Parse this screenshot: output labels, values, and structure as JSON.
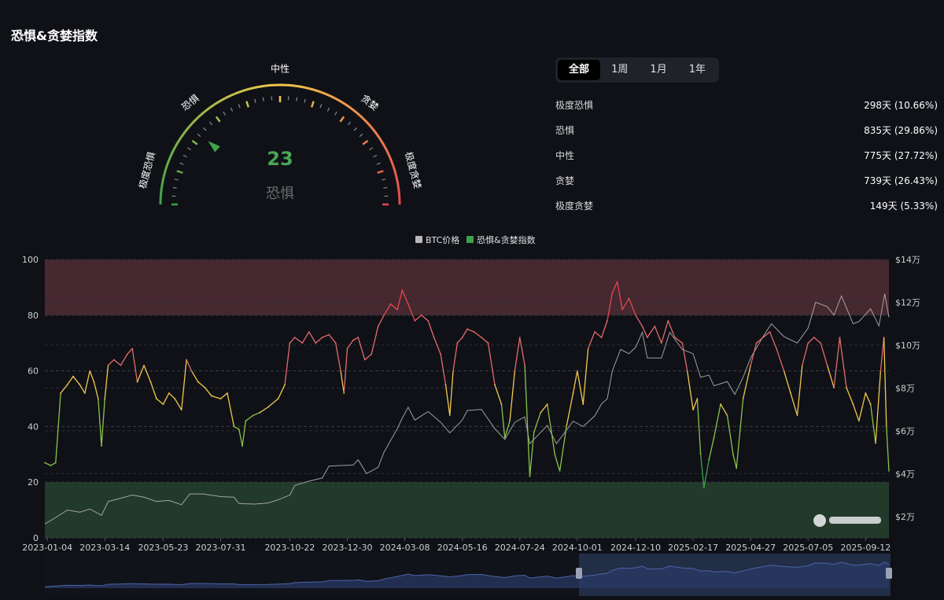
{
  "page": {
    "title": "恐惧&贪婪指数"
  },
  "gauge": {
    "value": 23,
    "status": "恐惧",
    "labels": {
      "extreme_fear": "极度恐惧",
      "fear": "恐惧",
      "neutral": "中性",
      "greed": "贪婪",
      "extreme_greed": "极度贪婪"
    }
  },
  "tabs": [
    "全部",
    "1周",
    "1月",
    "1年"
  ],
  "active_tab": "全部",
  "distribution": [
    {
      "label": "极度恐惧",
      "value": "298天 (10.66%)"
    },
    {
      "label": "恐惧",
      "value": "835天 (29.86%)"
    },
    {
      "label": "中性",
      "value": "775天 (27.72%)"
    },
    {
      "label": "贪婪",
      "value": "739天 (26.43%)"
    },
    {
      "label": "极度贪婪",
      "value": "149天 (5.33%)"
    }
  ],
  "colors": {
    "background": "#0f1117",
    "extreme_fear": "#3ea34a",
    "fear": "#8bc34a",
    "neutral": "#f2c84b",
    "greed": "#e36b6b",
    "extreme_greed": "#e5484d",
    "btc_line": "#b9b9b9",
    "greed_zone": "#4a2a31",
    "fear_zone": "#243d2b",
    "navigator": "#2a3a66"
  },
  "chart_data": {
    "type": "line",
    "legend": [
      "BTC价格",
      "恐惧&贪婪指数"
    ],
    "legend_placement": "top-center",
    "x_ticks": [
      "2023-01-04",
      "2023-03-14",
      "2023-05-23",
      "2023-07-31",
      "2023-10-22",
      "2023-12-30",
      "2024-03-08",
      "2024-05-16",
      "2024-07-24",
      "2024-10-01",
      "2024-12-10",
      "2025-02-17",
      "2025-04-27",
      "2025-07-05",
      "2025-09-12"
    ],
    "y_left": {
      "ticks": [
        "0",
        "20",
        "40",
        "60",
        "80",
        "100"
      ],
      "range": [
        0,
        100
      ]
    },
    "y_right": {
      "ticks": [
        "$2万",
        "$4万",
        "$6万",
        "$8万",
        "$10万",
        "$12万",
        "$14万"
      ],
      "range": [
        10000,
        140000
      ]
    },
    "zones": [
      {
        "name": "greed",
        "from": 80,
        "to": 100
      },
      {
        "name": "fear",
        "from": 0,
        "to": 20
      }
    ],
    "x_range": [
      "2023-01-01",
      "2025-10-10"
    ],
    "series": [
      {
        "name": "恐惧&贪婪指数",
        "axis": "left",
        "points": [
          [
            "2023-01-01",
            27
          ],
          [
            "2023-01-08",
            26
          ],
          [
            "2023-01-14",
            27
          ],
          [
            "2023-01-20",
            52
          ],
          [
            "2023-01-28",
            55
          ],
          [
            "2023-02-04",
            58
          ],
          [
            "2023-02-12",
            55
          ],
          [
            "2023-02-18",
            52
          ],
          [
            "2023-02-24",
            60
          ],
          [
            "2023-03-01",
            56
          ],
          [
            "2023-03-06",
            50
          ],
          [
            "2023-03-10",
            33
          ],
          [
            "2023-03-14",
            50
          ],
          [
            "2023-03-18",
            62
          ],
          [
            "2023-03-25",
            64
          ],
          [
            "2023-04-02",
            62
          ],
          [
            "2023-04-10",
            66
          ],
          [
            "2023-04-16",
            68
          ],
          [
            "2023-04-22",
            56
          ],
          [
            "2023-04-30",
            62
          ],
          [
            "2023-05-08",
            56
          ],
          [
            "2023-05-15",
            50
          ],
          [
            "2023-05-23",
            48
          ],
          [
            "2023-05-30",
            52
          ],
          [
            "2023-06-06",
            50
          ],
          [
            "2023-06-14",
            46
          ],
          [
            "2023-06-20",
            64
          ],
          [
            "2023-06-26",
            60
          ],
          [
            "2023-07-04",
            56
          ],
          [
            "2023-07-12",
            54
          ],
          [
            "2023-07-20",
            51
          ],
          [
            "2023-07-31",
            50
          ],
          [
            "2023-08-08",
            52
          ],
          [
            "2023-08-16",
            40
          ],
          [
            "2023-08-22",
            39
          ],
          [
            "2023-08-26",
            33
          ],
          [
            "2023-08-30",
            42
          ],
          [
            "2023-09-08",
            44
          ],
          [
            "2023-09-16",
            45
          ],
          [
            "2023-09-26",
            47
          ],
          [
            "2023-10-08",
            50
          ],
          [
            "2023-10-16",
            55
          ],
          [
            "2023-10-22",
            70
          ],
          [
            "2023-10-28",
            72
          ],
          [
            "2023-11-06",
            70
          ],
          [
            "2023-11-14",
            74
          ],
          [
            "2023-11-22",
            70
          ],
          [
            "2023-11-30",
            72
          ],
          [
            "2023-12-08",
            73
          ],
          [
            "2023-12-16",
            70
          ],
          [
            "2023-12-22",
            60
          ],
          [
            "2023-12-26",
            52
          ],
          [
            "2023-12-30",
            68
          ],
          [
            "2024-01-06",
            71
          ],
          [
            "2024-01-12",
            72
          ],
          [
            "2024-01-20",
            64
          ],
          [
            "2024-01-28",
            66
          ],
          [
            "2024-02-05",
            76
          ],
          [
            "2024-02-12",
            80
          ],
          [
            "2024-02-20",
            84
          ],
          [
            "2024-02-28",
            82
          ],
          [
            "2024-03-05",
            89
          ],
          [
            "2024-03-12",
            84
          ],
          [
            "2024-03-20",
            78
          ],
          [
            "2024-03-28",
            80
          ],
          [
            "2024-04-05",
            78
          ],
          [
            "2024-04-12",
            72
          ],
          [
            "2024-04-20",
            66
          ],
          [
            "2024-04-26",
            55
          ],
          [
            "2024-05-01",
            44
          ],
          [
            "2024-05-05",
            60
          ],
          [
            "2024-05-10",
            70
          ],
          [
            "2024-05-16",
            72
          ],
          [
            "2024-05-22",
            75
          ],
          [
            "2024-05-30",
            74
          ],
          [
            "2024-06-08",
            72
          ],
          [
            "2024-06-16",
            70
          ],
          [
            "2024-06-24",
            55
          ],
          [
            "2024-07-02",
            48
          ],
          [
            "2024-07-06",
            36
          ],
          [
            "2024-07-12",
            42
          ],
          [
            "2024-07-18",
            60
          ],
          [
            "2024-07-24",
            72
          ],
          [
            "2024-07-30",
            62
          ],
          [
            "2024-08-05",
            22
          ],
          [
            "2024-08-10",
            38
          ],
          [
            "2024-08-18",
            45
          ],
          [
            "2024-08-26",
            48
          ],
          [
            "2024-09-04",
            30
          ],
          [
            "2024-09-10",
            24
          ],
          [
            "2024-09-18",
            40
          ],
          [
            "2024-09-26",
            52
          ],
          [
            "2024-10-01",
            60
          ],
          [
            "2024-10-08",
            48
          ],
          [
            "2024-10-14",
            68
          ],
          [
            "2024-10-22",
            74
          ],
          [
            "2024-10-30",
            72
          ],
          [
            "2024-11-06",
            78
          ],
          [
            "2024-11-12",
            88
          ],
          [
            "2024-11-18",
            92
          ],
          [
            "2024-11-24",
            82
          ],
          [
            "2024-12-02",
            86
          ],
          [
            "2024-12-10",
            80
          ],
          [
            "2024-12-18",
            76
          ],
          [
            "2024-12-24",
            72
          ],
          [
            "2025-01-02",
            76
          ],
          [
            "2025-01-10",
            70
          ],
          [
            "2025-01-18",
            78
          ],
          [
            "2025-01-26",
            72
          ],
          [
            "2025-02-04",
            70
          ],
          [
            "2025-02-10",
            60
          ],
          [
            "2025-02-17",
            46
          ],
          [
            "2025-02-22",
            50
          ],
          [
            "2025-02-26",
            30
          ],
          [
            "2025-03-02",
            18
          ],
          [
            "2025-03-08",
            28
          ],
          [
            "2025-03-14",
            36
          ],
          [
            "2025-03-22",
            48
          ],
          [
            "2025-03-30",
            44
          ],
          [
            "2025-04-06",
            30
          ],
          [
            "2025-04-10",
            25
          ],
          [
            "2025-04-18",
            50
          ],
          [
            "2025-04-27",
            62
          ],
          [
            "2025-05-04",
            70
          ],
          [
            "2025-05-12",
            72
          ],
          [
            "2025-05-20",
            74
          ],
          [
            "2025-05-28",
            68
          ],
          [
            "2025-06-06",
            60
          ],
          [
            "2025-06-14",
            52
          ],
          [
            "2025-06-22",
            44
          ],
          [
            "2025-06-28",
            62
          ],
          [
            "2025-07-05",
            70
          ],
          [
            "2025-07-12",
            72
          ],
          [
            "2025-07-20",
            70
          ],
          [
            "2025-07-28",
            62
          ],
          [
            "2025-08-05",
            54
          ],
          [
            "2025-08-12",
            72
          ],
          [
            "2025-08-20",
            54
          ],
          [
            "2025-08-28",
            48
          ],
          [
            "2025-09-04",
            42
          ],
          [
            "2025-09-12",
            52
          ],
          [
            "2025-09-18",
            48
          ],
          [
            "2025-09-24",
            34
          ],
          [
            "2025-09-30",
            60
          ],
          [
            "2025-10-04",
            72
          ],
          [
            "2025-10-07",
            40
          ],
          [
            "2025-10-10",
            24
          ]
        ]
      },
      {
        "name": "BTC价格",
        "axis": "right",
        "points": [
          [
            "2023-01-01",
            16500
          ],
          [
            "2023-01-14",
            19500
          ],
          [
            "2023-01-28",
            23000
          ],
          [
            "2023-02-12",
            22000
          ],
          [
            "2023-02-24",
            23500
          ],
          [
            "2023-03-10",
            20500
          ],
          [
            "2023-03-18",
            27000
          ],
          [
            "2023-04-02",
            28500
          ],
          [
            "2023-04-16",
            30000
          ],
          [
            "2023-04-30",
            29000
          ],
          [
            "2023-05-15",
            27000
          ],
          [
            "2023-05-30",
            27500
          ],
          [
            "2023-06-14",
            25500
          ],
          [
            "2023-06-24",
            30500
          ],
          [
            "2023-07-10",
            30500
          ],
          [
            "2023-07-31",
            29300
          ],
          [
            "2023-08-16",
            29000
          ],
          [
            "2023-08-22",
            26000
          ],
          [
            "2023-09-10",
            25800
          ],
          [
            "2023-09-26",
            26300
          ],
          [
            "2023-10-08",
            27800
          ],
          [
            "2023-10-22",
            30000
          ],
          [
            "2023-10-28",
            34500
          ],
          [
            "2023-11-14",
            36500
          ],
          [
            "2023-11-30",
            38000
          ],
          [
            "2023-12-08",
            43500
          ],
          [
            "2023-12-22",
            43800
          ],
          [
            "2024-01-06",
            44000
          ],
          [
            "2024-01-12",
            46500
          ],
          [
            "2024-01-22",
            40000
          ],
          [
            "2024-02-05",
            43000
          ],
          [
            "2024-02-12",
            50000
          ],
          [
            "2024-02-28",
            61000
          ],
          [
            "2024-03-05",
            66000
          ],
          [
            "2024-03-12",
            71000
          ],
          [
            "2024-03-20",
            65000
          ],
          [
            "2024-04-05",
            69000
          ],
          [
            "2024-04-20",
            64000
          ],
          [
            "2024-05-01",
            59000
          ],
          [
            "2024-05-16",
            65000
          ],
          [
            "2024-05-22",
            69500
          ],
          [
            "2024-06-08",
            70000
          ],
          [
            "2024-06-24",
            61000
          ],
          [
            "2024-07-06",
            56000
          ],
          [
            "2024-07-18",
            64000
          ],
          [
            "2024-07-30",
            66500
          ],
          [
            "2024-08-05",
            54000
          ],
          [
            "2024-08-26",
            62500
          ],
          [
            "2024-09-06",
            54000
          ],
          [
            "2024-09-26",
            64500
          ],
          [
            "2024-10-08",
            62000
          ],
          [
            "2024-10-22",
            67000
          ],
          [
            "2024-10-30",
            72500
          ],
          [
            "2024-11-06",
            75000
          ],
          [
            "2024-11-12",
            88000
          ],
          [
            "2024-11-22",
            98000
          ],
          [
            "2024-12-02",
            96000
          ],
          [
            "2024-12-10",
            99000
          ],
          [
            "2024-12-18",
            106000
          ],
          [
            "2024-12-24",
            94000
          ],
          [
            "2025-01-10",
            94000
          ],
          [
            "2025-01-20",
            106000
          ],
          [
            "2025-02-04",
            98000
          ],
          [
            "2025-02-17",
            96000
          ],
          [
            "2025-02-26",
            85000
          ],
          [
            "2025-03-08",
            86000
          ],
          [
            "2025-03-14",
            81000
          ],
          [
            "2025-03-30",
            83000
          ],
          [
            "2025-04-08",
            77000
          ],
          [
            "2025-04-18",
            85000
          ],
          [
            "2025-04-27",
            94000
          ],
          [
            "2025-05-12",
            104000
          ],
          [
            "2025-05-22",
            110000
          ],
          [
            "2025-06-06",
            104000
          ],
          [
            "2025-06-22",
            101000
          ],
          [
            "2025-07-05",
            108000
          ],
          [
            "2025-07-14",
            120000
          ],
          [
            "2025-07-28",
            118000
          ],
          [
            "2025-08-05",
            114000
          ],
          [
            "2025-08-14",
            123000
          ],
          [
            "2025-08-28",
            110000
          ],
          [
            "2025-09-04",
            111000
          ],
          [
            "2025-09-18",
            117000
          ],
          [
            "2025-09-28",
            109000
          ],
          [
            "2025-10-05",
            124000
          ],
          [
            "2025-10-10",
            113000
          ]
        ]
      }
    ]
  }
}
